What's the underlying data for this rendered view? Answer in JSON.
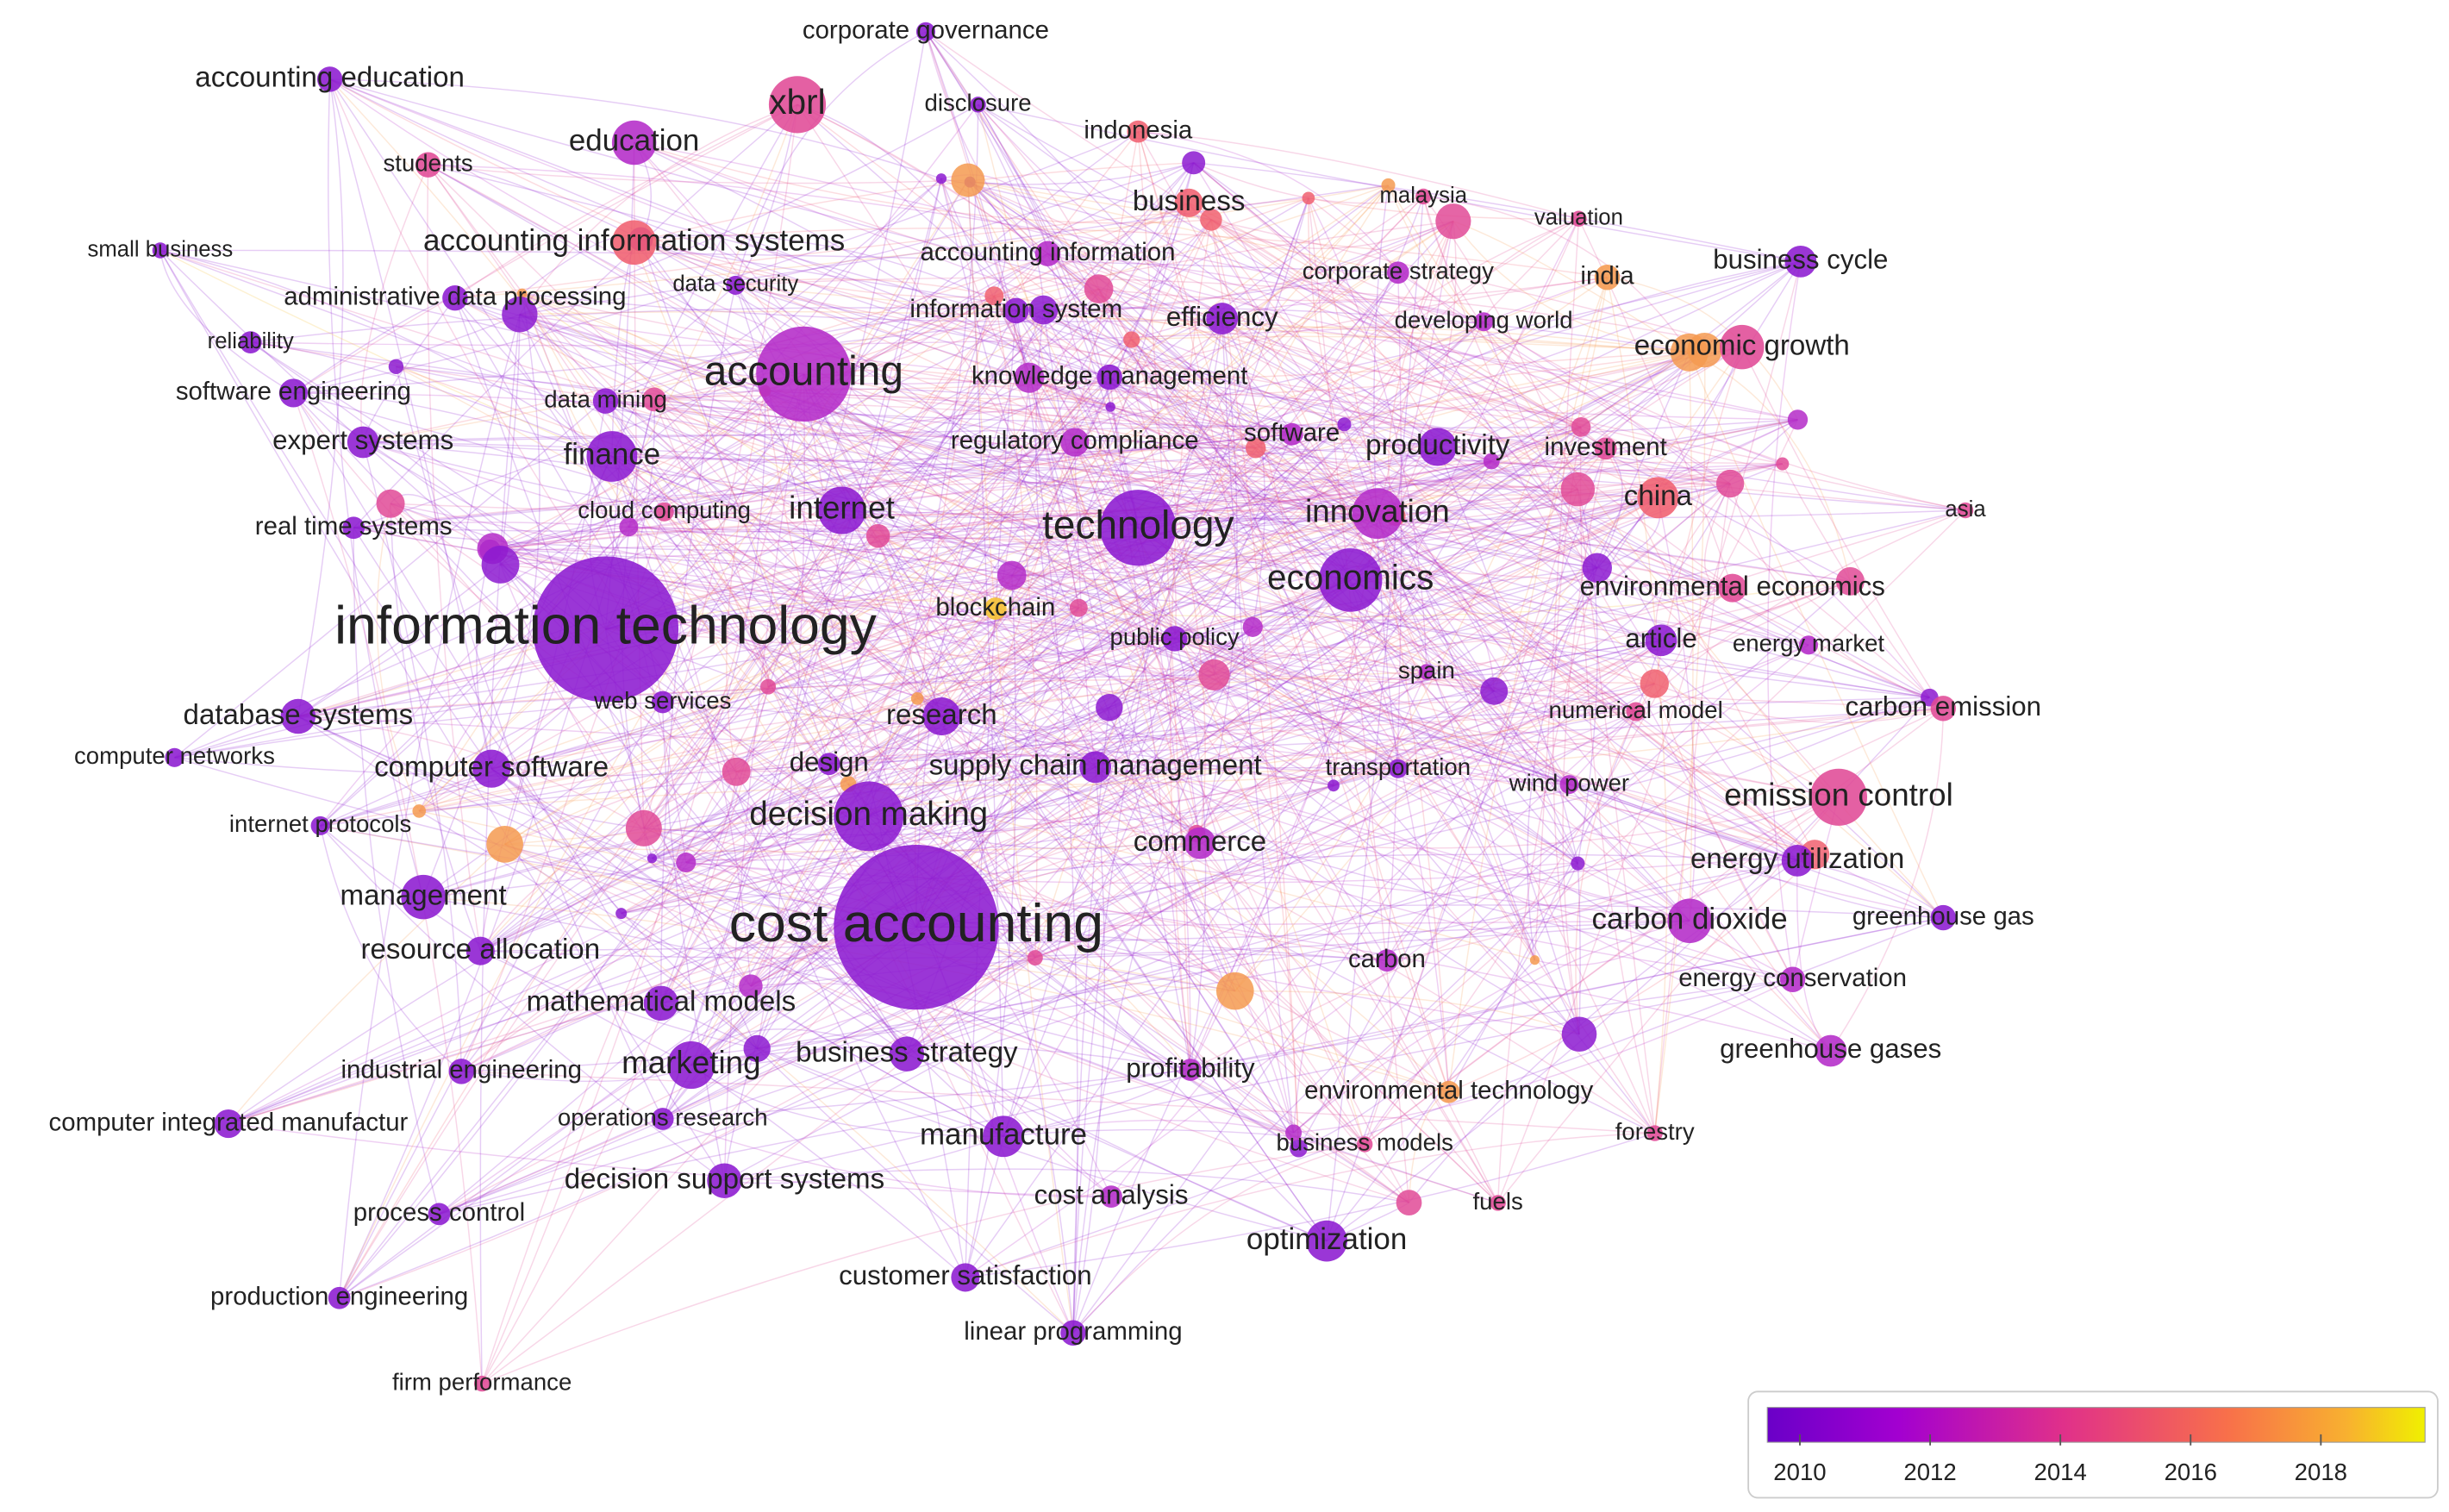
{
  "nodes": [
    "corporate governance",
    "accounting education",
    "xbrl",
    "disclosure",
    "indonesia",
    "education",
    "students",
    "business",
    "malaysia",
    "valuation",
    "small business",
    "accounting information systems",
    "accounting information",
    "business cycle",
    "corporate strategy",
    "india",
    "administrative data processing",
    "data security",
    "information system",
    "efficiency",
    "developing world",
    "economic growth",
    "reliability",
    "accounting",
    "knowledge management",
    "software engineering",
    "data mining",
    "expert systems",
    "regulatory compliance",
    "software",
    "productivity",
    "investment",
    "finance",
    "china",
    "asia",
    "cloud computing",
    "internet",
    "real time systems",
    "technology",
    "innovation",
    "economics",
    "environmental economics",
    "blockchain",
    "information technology",
    "public policy",
    "article",
    "energy market",
    "spain",
    "web services",
    "database systems",
    "research",
    "numerical model",
    "carbon emission",
    "computer networks",
    "computer software",
    "design",
    "supply chain management",
    "transportation",
    "wind power",
    "emission control",
    "internet protocols",
    "decision making",
    "commerce",
    "energy utilization",
    "management",
    "cost accounting",
    "carbon dioxide",
    "greenhouse gas",
    "resource allocation",
    "carbon",
    "energy conservation",
    "mathematical models",
    "business strategy",
    "greenhouse gases",
    "marketing",
    "industrial engineering",
    "profitability",
    "environmental technology",
    "computer integrated manufactur",
    "operations research",
    "forestry",
    "manufacture",
    "business models",
    "decision support systems",
    "cost analysis",
    "fuels",
    "process control",
    "optimization",
    "customer satisfaction",
    "production engineering",
    "linear programming",
    "firm performance"
  ],
  "legend": {
    "lim": [
      2009.5,
      2019.6
    ],
    "ticks": [
      2010,
      2012,
      2014,
      2016,
      2018
    ]
  }
}
